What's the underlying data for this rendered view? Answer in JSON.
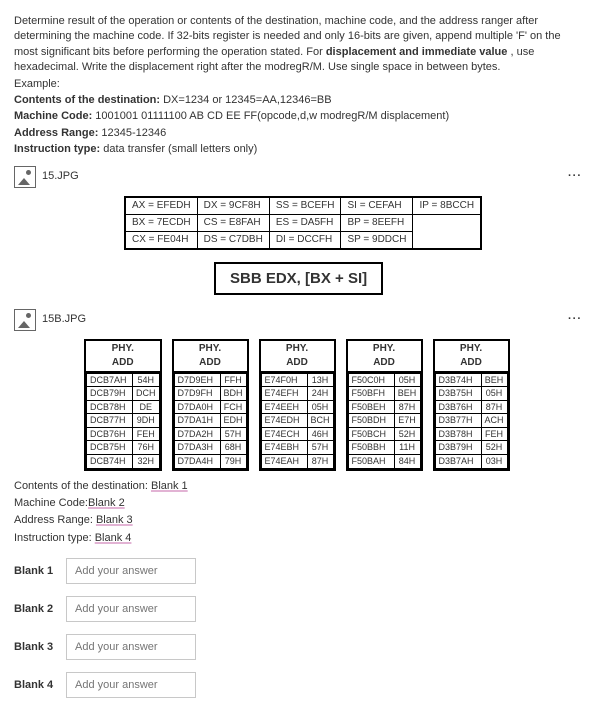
{
  "prompt": {
    "p1": "Determine result of the operation or contents of the destination, machine code, and the address ranger after determining the machine code. If 32-bits register is needed and only 16-bits are given, append multiple 'F' on the most significant bits before performing the operation stated. For ",
    "bold1": "displacement and immediate value",
    "p2": ", use hexadecimal. Write the displacement right after the modregR/M. Use single space in between bytes.",
    "example_label": "Example:",
    "contents_label": "Contents of the destination:",
    "contents_val": " DX=1234 or 12345=AA,12346=BB",
    "mcode_label": "Machine Code:",
    "mcode_val": " 1001001 01111100 AB CD EE FF(opcode,d,w modregR/M displacement)",
    "range_label": "Address Range:",
    "range_val": " 12345-12346",
    "itype_label": "Instruction type:",
    "itype_val": " data transfer (small letters only)"
  },
  "img1_name": "15.JPG",
  "img2_name": "15B.JPG",
  "registers": [
    [
      "AX = EFEDH",
      "DX = 9CF8H",
      "SS = BCEFH",
      "SI = CEFAH",
      "IP = 8BCCH"
    ],
    [
      "BX = 7ECDH",
      "CS = E8FAH",
      "ES = DA5FH",
      "BP = 8EEFH",
      ""
    ],
    [
      "CX = FE04H",
      "DS = C7DBH",
      "DI = DCCFH",
      "SP = 9DDCH",
      ""
    ]
  ],
  "instruction": "SBB EDX, [BX + SI]",
  "mem_header": {
    "l1": "PHY.",
    "l2": "ADD"
  },
  "mem": [
    [
      [
        "DCB7AH",
        "54H"
      ],
      [
        "DCB79H",
        "DCH"
      ],
      [
        "DCB78H",
        "DE"
      ],
      [
        "DCB77H",
        "9DH"
      ],
      [
        "DCB76H",
        "FEH"
      ],
      [
        "DCB75H",
        "76H"
      ],
      [
        "DCB74H",
        "32H"
      ]
    ],
    [
      [
        "D7D9EH",
        "FFH"
      ],
      [
        "D7D9FH",
        "BDH"
      ],
      [
        "D7DA0H",
        "FCH"
      ],
      [
        "D7DA1H",
        "EDH"
      ],
      [
        "D7DA2H",
        "57H"
      ],
      [
        "D7DA3H",
        "68H"
      ],
      [
        "D7DA4H",
        "79H"
      ]
    ],
    [
      [
        "E74F0H",
        "13H"
      ],
      [
        "E74EFH",
        "24H"
      ],
      [
        "E74EEH",
        "05H"
      ],
      [
        "E74EDH",
        "BCH"
      ],
      [
        "E74ECH",
        "46H"
      ],
      [
        "E74EBH",
        "57H"
      ],
      [
        "E74EAH",
        "87H"
      ]
    ],
    [
      [
        "F50C0H",
        "05H"
      ],
      [
        "F50BFH",
        "BEH"
      ],
      [
        "F50BEH",
        "87H"
      ],
      [
        "F50BDH",
        "E7H"
      ],
      [
        "F50BCH",
        "52H"
      ],
      [
        "F50BBH",
        "11H"
      ],
      [
        "F50BAH",
        "84H"
      ]
    ],
    [
      [
        "D3B74H",
        "BEH"
      ],
      [
        "D3B75H",
        "05H"
      ],
      [
        "D3B76H",
        "87H"
      ],
      [
        "D3B77H",
        "ACH"
      ],
      [
        "D3B78H",
        "FEH"
      ],
      [
        "D3B79H",
        "52H"
      ],
      [
        "D3B7AH",
        "03H"
      ]
    ]
  ],
  "answers": {
    "c_label": "Contents of the destination: ",
    "c_val": "Blank 1",
    "m_label": "Machine Code:",
    "m_val": "Blank 2",
    "a_label": "Address Range: ",
    "a_val": "Blank 3",
    "i_label": "Instruction type: ",
    "i_val": "Blank 4"
  },
  "blanks": [
    {
      "label": "Blank 1",
      "ph": "Add your answer"
    },
    {
      "label": "Blank 2",
      "ph": "Add your answer"
    },
    {
      "label": "Blank 3",
      "ph": "Add your answer"
    },
    {
      "label": "Blank 4",
      "ph": "Add your answer"
    }
  ]
}
